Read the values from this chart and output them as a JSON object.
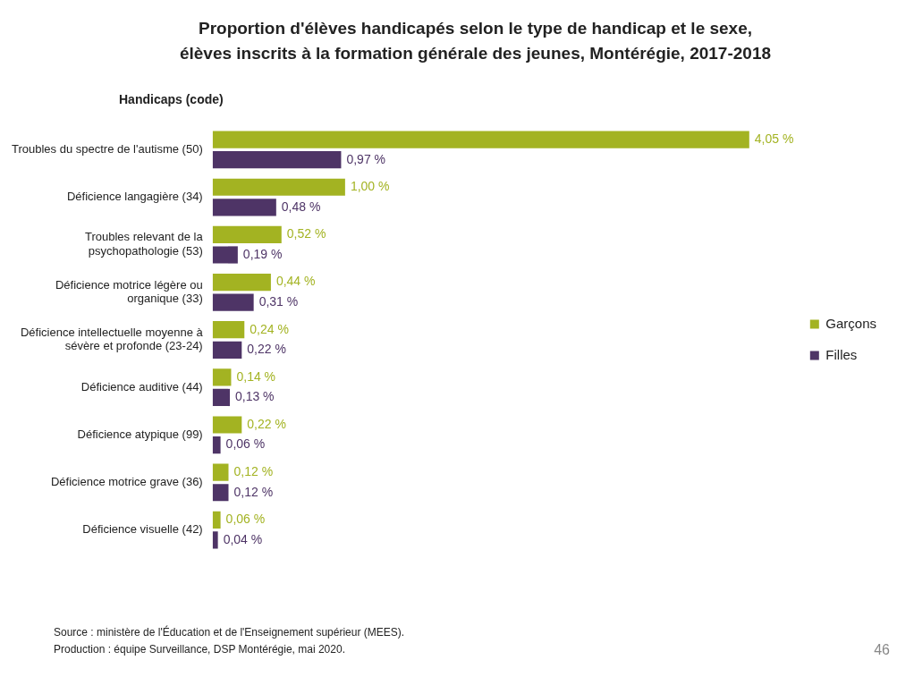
{
  "chart_data": {
    "type": "bar",
    "orientation": "horizontal",
    "title": "Proportion d'élèves handicapés selon le type de handicap et le sexe,\nélèves inscrits à la formation générale des jeunes, Montérégie, 2017-2018",
    "ylabel": "Handicaps (code)",
    "categories": [
      "Troubles du spectre de l'autisme (50)",
      "Déficience langagière (34)",
      "Troubles relevant de la\npsychopathologie (53)",
      "Déficience motrice légère ou\norganique (33)",
      "Déficience intellectuelle moyenne à\nsévère et profonde (23-24)",
      "Déficience auditive (44)",
      "Déficience atypique (99)",
      "Déficience motrice grave (36)",
      "Déficience visuelle (42)"
    ],
    "series": [
      {
        "name": "Garçons",
        "color": "#a3b322",
        "values": [
          4.05,
          1.0,
          0.52,
          0.44,
          0.24,
          0.14,
          0.22,
          0.12,
          0.06
        ],
        "value_labels": [
          "4,05 %",
          "1,00 %",
          "0,52 %",
          "0,44 %",
          "0,24 %",
          "0,14 %",
          "0,22 %",
          "0,12 %",
          "0,06 %"
        ]
      },
      {
        "name": "Filles",
        "color": "#4e3466",
        "values": [
          0.97,
          0.48,
          0.19,
          0.31,
          0.22,
          0.13,
          0.06,
          0.12,
          0.04
        ],
        "value_labels": [
          "0,97 %",
          "0,48 %",
          "0,19 %",
          "0,31 %",
          "0,22 %",
          "0,13 %",
          "0,06 %",
          "0,12 %",
          "0,04 %"
        ]
      }
    ],
    "legend": "right",
    "annotations": [
      "Source : ministère de l'Éducation et de l'Enseignement supérieur (MEES).",
      "Production : équipe Surveillance, DSP Montérégie, mai 2020.",
      "46"
    ]
  }
}
